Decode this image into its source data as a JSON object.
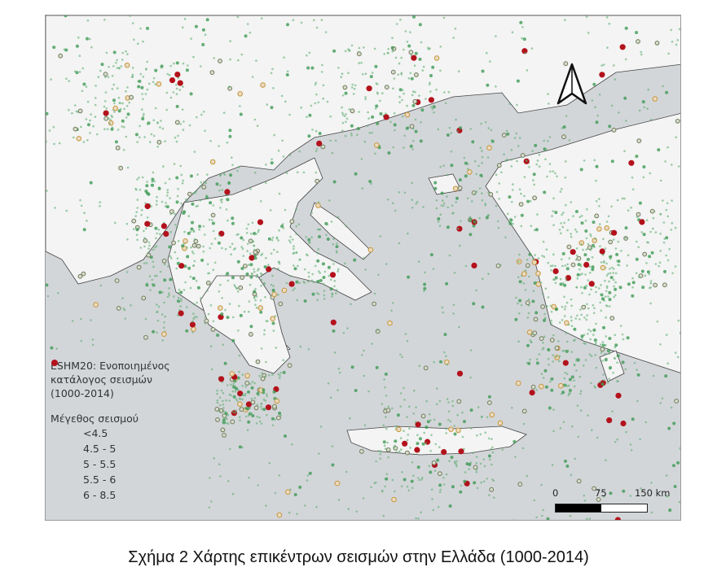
{
  "legend": {
    "title": "ESHM20: Ενοποιημένος κατάλογος σεισμών (1000-2014)",
    "title_lines": [
      "ESHM20: Ενοποιημένος",
      "κατάλογος σεισμών",
      "(1000-2014)"
    ],
    "magnitude_heading": "Μέγεθος σεισμού",
    "classes": [
      {
        "label": "<4.5",
        "color": "#9fc9a6"
      },
      {
        "label": "4.5 - 5",
        "color": "#6aa87a"
      },
      {
        "label": "5 - 5.5",
        "color": "#8f9a78"
      },
      {
        "label": "5.5 - 6",
        "color": "#c9953c"
      },
      {
        "label": "6 - 8.5",
        "color": "#b3121c"
      }
    ]
  },
  "scale_bar": {
    "ticks": [
      "0",
      "75",
      "150 km"
    ]
  },
  "north_arrow": "north-arrow-icon",
  "colors": {
    "sea": "#d3d6d9",
    "land": "#f4f5f4",
    "epicenter_small": "#3f9a55",
    "epicenter_large": "#b3121c"
  },
  "caption": "Σχήμα 2 Χάρτης επικέντρων σεισμών στην Ελλάδα (1000-2014)"
}
